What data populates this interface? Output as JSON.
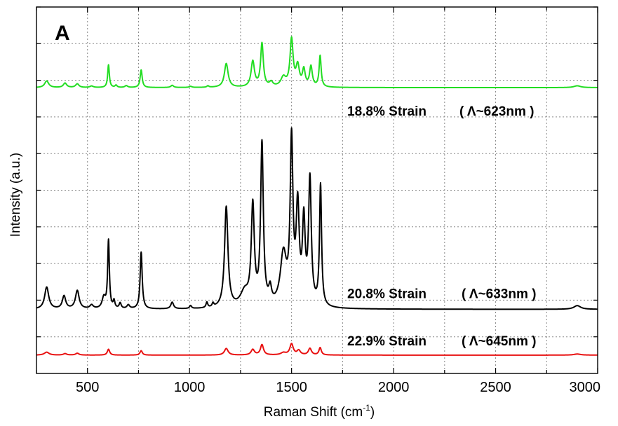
{
  "chart_data": {
    "type": "line",
    "panel_label": "A",
    "xlabel": "Raman Shift (cm",
    "xlabel_superscript": "-1",
    "xlabel_suffix": ")",
    "ylabel": "Intensity (a.u.)",
    "xlim": [
      250,
      3000
    ],
    "ylim": [
      0,
      10
    ],
    "x_ticks": [
      500,
      1000,
      1500,
      2000,
      2500,
      3000
    ],
    "x_tick_labels": [
      "500",
      "1000",
      "1500",
      "2000",
      "2500",
      "3000"
    ],
    "x_grid": [
      250,
      500,
      750,
      1000,
      1250,
      1500,
      1750,
      2000,
      2250,
      2500,
      2750,
      3000
    ],
    "y_grid": [
      1,
      2,
      3,
      4,
      5,
      6,
      7,
      8,
      9,
      10
    ],
    "grid": true,
    "series": [
      {
        "label": "18.8% Strain",
        "wavelength": "( Λ~623nm )",
        "color": "#22dd22",
        "baseline": 7.8,
        "peaks": [
          {
            "x": 300,
            "h": 0.18,
            "w": 12
          },
          {
            "x": 390,
            "h": 0.12,
            "w": 10
          },
          {
            "x": 450,
            "h": 0.1,
            "w": 10
          },
          {
            "x": 520,
            "h": 0.04,
            "w": 10
          },
          {
            "x": 603,
            "h": 0.62,
            "w": 5
          },
          {
            "x": 640,
            "h": 0.06,
            "w": 6
          },
          {
            "x": 690,
            "h": 0.05,
            "w": 8
          },
          {
            "x": 763,
            "h": 0.48,
            "w": 6
          },
          {
            "x": 915,
            "h": 0.06,
            "w": 8
          },
          {
            "x": 1005,
            "h": 0.03,
            "w": 8
          },
          {
            "x": 1090,
            "h": 0.04,
            "w": 6
          },
          {
            "x": 1180,
            "h": 0.65,
            "w": 11
          },
          {
            "x": 1310,
            "h": 0.7,
            "w": 10
          },
          {
            "x": 1355,
            "h": 1.18,
            "w": 8
          },
          {
            "x": 1400,
            "h": 0.12,
            "w": 10
          },
          {
            "x": 1460,
            "h": 0.25,
            "w": 15
          },
          {
            "x": 1500,
            "h": 1.28,
            "w": 9
          },
          {
            "x": 1530,
            "h": 0.55,
            "w": 10
          },
          {
            "x": 1560,
            "h": 0.45,
            "w": 8
          },
          {
            "x": 1595,
            "h": 0.55,
            "w": 8
          },
          {
            "x": 1640,
            "h": 0.85,
            "w": 6
          },
          {
            "x": 2900,
            "h": 0.05,
            "w": 20
          }
        ]
      },
      {
        "label": "20.8% Strain",
        "wavelength": "( Λ~633nm )",
        "color": "#000000",
        "baseline": 1.75,
        "peaks": [
          {
            "x": 300,
            "h": 0.6,
            "w": 12
          },
          {
            "x": 385,
            "h": 0.35,
            "w": 10
          },
          {
            "x": 450,
            "h": 0.5,
            "w": 11
          },
          {
            "x": 520,
            "h": 0.1,
            "w": 10
          },
          {
            "x": 603,
            "h": 1.85,
            "w": 5
          },
          {
            "x": 580,
            "h": 0.3,
            "w": 10
          },
          {
            "x": 630,
            "h": 0.2,
            "w": 5
          },
          {
            "x": 660,
            "h": 0.15,
            "w": 6
          },
          {
            "x": 700,
            "h": 0.1,
            "w": 8
          },
          {
            "x": 763,
            "h": 1.55,
            "w": 6
          },
          {
            "x": 915,
            "h": 0.18,
            "w": 8
          },
          {
            "x": 1005,
            "h": 0.08,
            "w": 6
          },
          {
            "x": 1085,
            "h": 0.15,
            "w": 5
          },
          {
            "x": 1115,
            "h": 0.1,
            "w": 5
          },
          {
            "x": 1180,
            "h": 2.75,
            "w": 10
          },
          {
            "x": 1270,
            "h": 0.4,
            "w": 25
          },
          {
            "x": 1310,
            "h": 2.7,
            "w": 9
          },
          {
            "x": 1355,
            "h": 4.4,
            "w": 8
          },
          {
            "x": 1395,
            "h": 0.4,
            "w": 8
          },
          {
            "x": 1460,
            "h": 1.4,
            "w": 18
          },
          {
            "x": 1500,
            "h": 4.4,
            "w": 8
          },
          {
            "x": 1530,
            "h": 2.6,
            "w": 9
          },
          {
            "x": 1560,
            "h": 2.2,
            "w": 8
          },
          {
            "x": 1590,
            "h": 3.4,
            "w": 8
          },
          {
            "x": 1642,
            "h": 3.3,
            "w": 6
          },
          {
            "x": 2900,
            "h": 0.1,
            "w": 20
          }
        ]
      },
      {
        "label": "22.9% Strain",
        "wavelength": "( Λ~645nm )",
        "color": "#e81010",
        "baseline": 0.5,
        "peaks": [
          {
            "x": 300,
            "h": 0.08,
            "w": 14
          },
          {
            "x": 390,
            "h": 0.04,
            "w": 10
          },
          {
            "x": 450,
            "h": 0.05,
            "w": 10
          },
          {
            "x": 603,
            "h": 0.16,
            "w": 7
          },
          {
            "x": 763,
            "h": 0.12,
            "w": 7
          },
          {
            "x": 1180,
            "h": 0.18,
            "w": 11
          },
          {
            "x": 1310,
            "h": 0.15,
            "w": 10
          },
          {
            "x": 1355,
            "h": 0.28,
            "w": 9
          },
          {
            "x": 1460,
            "h": 0.06,
            "w": 15
          },
          {
            "x": 1500,
            "h": 0.3,
            "w": 10
          },
          {
            "x": 1535,
            "h": 0.12,
            "w": 10
          },
          {
            "x": 1590,
            "h": 0.18,
            "w": 9
          },
          {
            "x": 1640,
            "h": 0.2,
            "w": 7
          },
          {
            "x": 2900,
            "h": 0.03,
            "w": 20
          }
        ]
      }
    ]
  }
}
